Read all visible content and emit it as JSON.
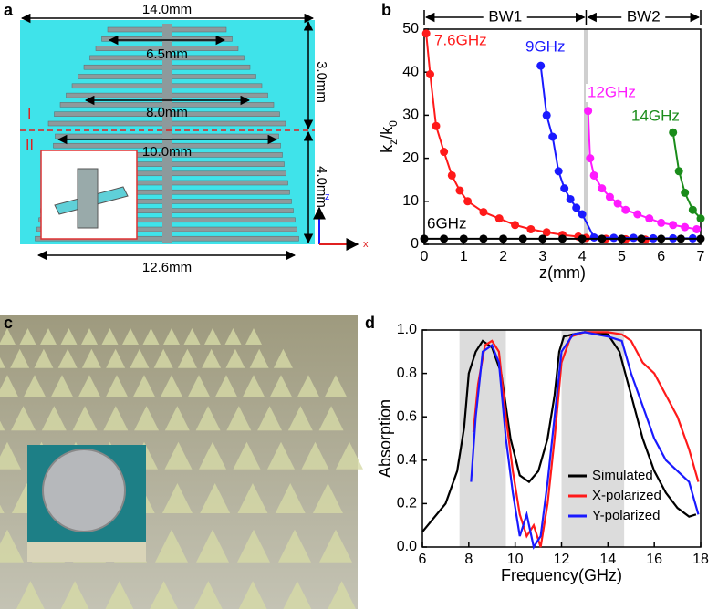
{
  "figure": {
    "a": {
      "label": "a",
      "dims": [
        "14.0mm",
        "6.5mm",
        "8.0mm",
        "10.0mm",
        "12.6mm",
        "3.0mm",
        "4.0mm"
      ],
      "regions": [
        "I",
        "II"
      ],
      "axes": [
        "z",
        "x"
      ]
    },
    "c": {
      "label": "c"
    }
  },
  "chart_data": [
    {
      "type": "line",
      "label": "b",
      "xlabel": "z(mm)",
      "ylabel": [
        "k",
        "z",
        "/k",
        "0"
      ],
      "xlim": [
        0,
        7
      ],
      "ylim": [
        0,
        50
      ],
      "xticks": [
        0,
        1,
        2,
        3,
        4,
        5,
        6,
        7
      ],
      "yticks": [
        0,
        10,
        20,
        30,
        40,
        50
      ],
      "markers": true,
      "divider": 4.1,
      "annotations": [
        "BW1",
        "BW2"
      ],
      "series": [
        {
          "name": "7.6GHz",
          "color": "#ff1a1a",
          "x": [
            0.05,
            0.15,
            0.3,
            0.5,
            0.7,
            0.9,
            1.1,
            1.5,
            1.9,
            2.3,
            2.7,
            3.1,
            3.5,
            3.9,
            4.1,
            4.6,
            5.1,
            5.6
          ],
          "values": [
            49,
            39.5,
            27.5,
            21.5,
            16,
            12.5,
            10,
            7.5,
            6,
            4.5,
            3.5,
            2.8,
            2.2,
            1.8,
            1.5,
            1.3,
            1.2,
            1.1
          ]
        },
        {
          "name": "9GHz",
          "color": "#1a1aff",
          "x": [
            2.95,
            3.1,
            3.25,
            3.4,
            3.55,
            3.7,
            3.85,
            4.0,
            4.3,
            4.8,
            5.3,
            5.8,
            6.3,
            6.8
          ],
          "values": [
            41.5,
            30,
            25,
            17,
            13,
            10.5,
            8.5,
            7,
            1.6,
            1.5,
            1.5,
            1.4,
            1.4,
            1.4
          ]
        },
        {
          "name": "12GHz",
          "color": "#ff1aff",
          "x": [
            4.15,
            4.2,
            4.3,
            4.5,
            4.7,
            4.9,
            5.1,
            5.4,
            5.7,
            6.0,
            6.3,
            6.6,
            6.9
          ],
          "values": [
            31,
            20,
            16,
            13,
            11,
            9.5,
            8,
            7,
            6,
            5,
            4.5,
            4,
            3.5
          ]
        },
        {
          "name": "14GHz",
          "color": "#1a8c1a",
          "x": [
            6.3,
            6.45,
            6.6,
            6.8,
            7.0
          ],
          "values": [
            26,
            17,
            12,
            8,
            6
          ]
        },
        {
          "name": "6GHz",
          "color": "#000000",
          "x": [
            0,
            0.5,
            1,
            1.5,
            2,
            2.5,
            3,
            3.5,
            4,
            4.5,
            5,
            5.5,
            6,
            6.5,
            7
          ],
          "values": [
            1.3,
            1.3,
            1.3,
            1.3,
            1.3,
            1.3,
            1.3,
            1.3,
            1.3,
            1.3,
            1.3,
            1.3,
            1.3,
            1.3,
            1.3
          ]
        }
      ]
    },
    {
      "type": "line",
      "label": "d",
      "xlabel": "Frequency(GHz)",
      "ylabel": [
        "Absorption"
      ],
      "xlim": [
        6,
        18
      ],
      "ylim": [
        0,
        1
      ],
      "xticks": [
        6,
        8,
        10,
        12,
        14,
        16,
        18
      ],
      "yticks": [
        {
          "value": 0,
          "label": "0.0"
        },
        {
          "value": 0.2,
          "label": "0.2"
        },
        {
          "value": 0.4,
          "label": "0.4"
        },
        {
          "value": 0.6,
          "label": "0.6"
        },
        {
          "value": 0.8,
          "label": "0.8"
        },
        {
          "value": 1,
          "label": "1.0"
        }
      ],
      "markers": false,
      "bands": [
        [
          7.6,
          9.6
        ],
        [
          12,
          14.7
        ]
      ],
      "legend": "lower right",
      "series": [
        {
          "name": "Simulated",
          "color": "#000000",
          "x": [
            6,
            7,
            7.5,
            7.8,
            8.0,
            8.3,
            8.6,
            9.0,
            9.4,
            9.8,
            10.2,
            10.6,
            11.0,
            11.4,
            11.7,
            11.9,
            12.1,
            12.5,
            13.0,
            14.0,
            14.5,
            15.0,
            15.5,
            16.0,
            16.5,
            17.0,
            17.5,
            17.8
          ],
          "values": [
            0.07,
            0.2,
            0.35,
            0.55,
            0.8,
            0.9,
            0.95,
            0.92,
            0.8,
            0.5,
            0.33,
            0.3,
            0.35,
            0.5,
            0.7,
            0.9,
            0.97,
            0.98,
            0.99,
            0.98,
            0.9,
            0.7,
            0.5,
            0.35,
            0.25,
            0.18,
            0.14,
            0.15
          ]
        },
        {
          "name": "X-polarized",
          "color": "#ff1a1a",
          "x": [
            8.2,
            8.4,
            8.7,
            9.0,
            9.3,
            9.6,
            9.9,
            10.2,
            10.5,
            10.8,
            11.1,
            11.4,
            11.7,
            12.0,
            12.4,
            13.0,
            14.0,
            14.6,
            15.0,
            15.5,
            16.0,
            16.5,
            17.0,
            17.5,
            17.9
          ],
          "values": [
            0.53,
            0.75,
            0.93,
            0.95,
            0.9,
            0.6,
            0.35,
            0.15,
            0.05,
            0.1,
            0.0,
            0.2,
            0.5,
            0.85,
            0.97,
            0.99,
            0.99,
            0.98,
            0.95,
            0.85,
            0.8,
            0.7,
            0.6,
            0.45,
            0.3
          ]
        },
        {
          "name": "Y-polarized",
          "color": "#1a1aff",
          "x": [
            8.1,
            8.3,
            8.6,
            9.0,
            9.3,
            9.6,
            9.9,
            10.2,
            10.5,
            10.8,
            11.1,
            11.4,
            11.7,
            12.0,
            12.5,
            13.0,
            14.0,
            14.6,
            15.0,
            15.5,
            16.0,
            16.5,
            17.0,
            17.5,
            17.9
          ],
          "values": [
            0.3,
            0.6,
            0.9,
            0.93,
            0.85,
            0.5,
            0.25,
            0.05,
            0.15,
            0.0,
            0.05,
            0.3,
            0.6,
            0.9,
            0.98,
            0.99,
            0.97,
            0.95,
            0.8,
            0.65,
            0.5,
            0.4,
            0.35,
            0.3,
            0.15
          ]
        }
      ]
    }
  ]
}
